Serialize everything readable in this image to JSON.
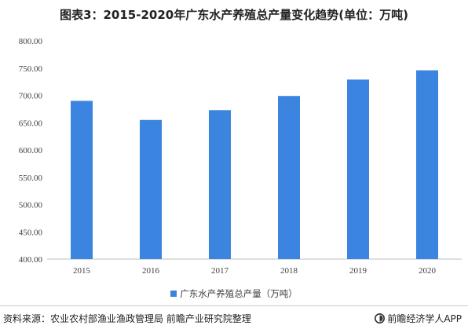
{
  "title": "图表3：2015-2020年广东水产养殖总产量变化趋势(单位：万吨)",
  "chart_data": {
    "type": "bar",
    "categories": [
      "2015",
      "2016",
      "2017",
      "2018",
      "2019",
      "2020"
    ],
    "series": [
      {
        "name": "广东水产养殖总产量（万吨）",
        "values": [
          690,
          655,
          673,
          699,
          729,
          746
        ]
      }
    ],
    "ylim": [
      400,
      800
    ],
    "yticks": [
      "400.00",
      "450.00",
      "500.00",
      "550.00",
      "600.00",
      "650.00",
      "700.00",
      "750.00",
      "800.00"
    ],
    "grid": false,
    "legend": "bottom",
    "color": "#3b85e0"
  },
  "footer": {
    "source": "资料来源：农业农村部渔业渔政管理局 前瞻产业研究院整理",
    "brand": "前瞻经济学人APP",
    "brand_icon": "qianzhan-logo-icon"
  }
}
